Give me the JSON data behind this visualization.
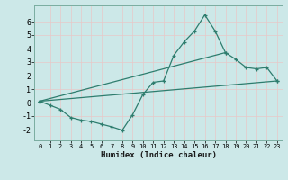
{
  "xlabel": "Humidex (Indice chaleur)",
  "background_color": "#cce8e8",
  "grid_color": "#e8c8c8",
  "line_color": "#2e7d6e",
  "xlim": [
    -0.5,
    23.5
  ],
  "ylim": [
    -2.8,
    7.2
  ],
  "xticks": [
    0,
    1,
    2,
    3,
    4,
    5,
    6,
    7,
    8,
    9,
    10,
    11,
    12,
    13,
    14,
    15,
    16,
    17,
    18,
    19,
    20,
    21,
    22,
    23
  ],
  "yticks": [
    -2,
    -1,
    0,
    1,
    2,
    3,
    4,
    5,
    6
  ],
  "series1_x": [
    0,
    1,
    2,
    3,
    4,
    5,
    6,
    7,
    8,
    9,
    10,
    11,
    12,
    13,
    14,
    15,
    16,
    17,
    18,
    19,
    20,
    21,
    22,
    23
  ],
  "series1_y": [
    0.1,
    -0.2,
    -0.5,
    -1.1,
    -1.3,
    -1.4,
    -1.6,
    -1.8,
    -2.05,
    -0.9,
    0.6,
    1.5,
    1.6,
    3.5,
    4.5,
    5.3,
    6.5,
    5.3,
    3.7,
    3.2,
    2.6,
    2.5,
    2.6,
    1.6
  ],
  "series2_x": [
    0,
    23
  ],
  "series2_y": [
    0.1,
    1.6
  ],
  "series3_x": [
    0,
    18
  ],
  "series3_y": [
    0.1,
    3.7
  ]
}
